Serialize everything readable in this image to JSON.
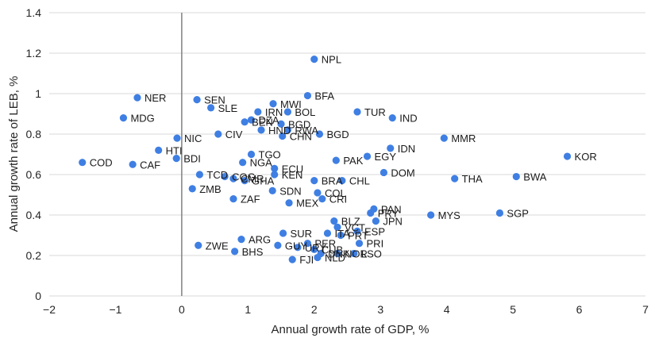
{
  "chart_data": {
    "type": "scatter",
    "title": "",
    "xlabel": "Annual growth rate of GDP, %",
    "ylabel": "Annual growth rate of LEB, %",
    "xlim": [
      -2,
      7
    ],
    "ylim": [
      0,
      1.4
    ],
    "xticks": [
      -2,
      -1,
      0,
      1,
      2,
      3,
      4,
      5,
      6,
      7
    ],
    "yticks": [
      0,
      0.2,
      0.4,
      0.6,
      0.8,
      1,
      1.2,
      1.4
    ],
    "xtick_labels": [
      "−2",
      "−1",
      "0",
      "1",
      "2",
      "3",
      "4",
      "5",
      "6",
      "7"
    ],
    "ytick_labels": [
      "0",
      "0.2",
      "0.4",
      "0.6",
      "0.8",
      "1",
      "1.2",
      "1.4"
    ],
    "grid": "horizontal",
    "zero_line_x": 0,
    "marker_color": "#3f7fe3",
    "zero_line_color": "#808080",
    "points": [
      {
        "label": "NPL",
        "x": 2.0,
        "y": 1.17
      },
      {
        "label": "NER",
        "x": -0.67,
        "y": 0.98
      },
      {
        "label": "SEN",
        "x": 0.23,
        "y": 0.97
      },
      {
        "label": "SLE",
        "x": 0.44,
        "y": 0.93
      },
      {
        "label": "MDG",
        "x": -0.88,
        "y": 0.88
      },
      {
        "label": "BFA",
        "x": 1.9,
        "y": 0.99
      },
      {
        "label": "MWI",
        "x": 1.38,
        "y": 0.95
      },
      {
        "label": "IRN",
        "x": 1.15,
        "y": 0.91
      },
      {
        "label": "BOL",
        "x": 1.6,
        "y": 0.91
      },
      {
        "label": "DZA",
        "x": 1.05,
        "y": 0.87
      },
      {
        "label": "BEN",
        "x": 0.95,
        "y": 0.86
      },
      {
        "label": "BGD",
        "x": 1.5,
        "y": 0.85
      },
      {
        "label": "HND",
        "x": 1.2,
        "y": 0.82
      },
      {
        "label": "RWA",
        "x": 1.6,
        "y": 0.82
      },
      {
        "label": "TUR",
        "x": 2.65,
        "y": 0.91
      },
      {
        "label": "IND",
        "x": 3.18,
        "y": 0.88
      },
      {
        "label": "BGD",
        "x": 2.08,
        "y": 0.8
      },
      {
        "label": "CHN",
        "x": 1.52,
        "y": 0.79
      },
      {
        "label": "CIV",
        "x": 0.55,
        "y": 0.8
      },
      {
        "label": "NIC",
        "x": -0.07,
        "y": 0.78
      },
      {
        "label": "HTI",
        "x": -0.35,
        "y": 0.72
      },
      {
        "label": "MMR",
        "x": 3.96,
        "y": 0.78
      },
      {
        "label": "IDN",
        "x": 3.15,
        "y": 0.73
      },
      {
        "label": "EGY",
        "x": 2.8,
        "y": 0.69
      },
      {
        "label": "PAK",
        "x": 2.33,
        "y": 0.67
      },
      {
        "label": "TGO",
        "x": 1.05,
        "y": 0.7
      },
      {
        "label": "BDI",
        "x": -0.08,
        "y": 0.68
      },
      {
        "label": "COD",
        "x": -1.5,
        "y": 0.66
      },
      {
        "label": "CAF",
        "x": -0.74,
        "y": 0.65
      },
      {
        "label": "NGA",
        "x": 0.92,
        "y": 0.66
      },
      {
        "label": "ECU",
        "x": 1.4,
        "y": 0.63
      },
      {
        "label": "KEN",
        "x": 1.4,
        "y": 0.6
      },
      {
        "label": "KOR",
        "x": 5.82,
        "y": 0.69
      },
      {
        "label": "BWA",
        "x": 5.05,
        "y": 0.59
      },
      {
        "label": "DOM",
        "x": 3.05,
        "y": 0.61
      },
      {
        "label": "THA",
        "x": 4.12,
        "y": 0.58
      },
      {
        "label": "BRA",
        "x": 2.0,
        "y": 0.57
      },
      {
        "label": "CHL",
        "x": 2.42,
        "y": 0.57
      },
      {
        "label": "TCD",
        "x": 0.27,
        "y": 0.6
      },
      {
        "label": "COG",
        "x": 0.65,
        "y": 0.59
      },
      {
        "label": "CMR",
        "x": 0.78,
        "y": 0.58
      },
      {
        "label": "GHA",
        "x": 0.95,
        "y": 0.57
      },
      {
        "label": "ZMB",
        "x": 0.16,
        "y": 0.53
      },
      {
        "label": "SDN",
        "x": 1.37,
        "y": 0.52
      },
      {
        "label": "COL",
        "x": 2.05,
        "y": 0.51
      },
      {
        "label": "ZAF",
        "x": 0.78,
        "y": 0.48
      },
      {
        "label": "CRI",
        "x": 2.12,
        "y": 0.48
      },
      {
        "label": "MEX",
        "x": 1.62,
        "y": 0.46
      },
      {
        "label": "PAN",
        "x": 2.9,
        "y": 0.43
      },
      {
        "label": "PRY",
        "x": 2.85,
        "y": 0.41
      },
      {
        "label": "JPN",
        "x": 2.93,
        "y": 0.37
      },
      {
        "label": "MYS",
        "x": 3.76,
        "y": 0.4
      },
      {
        "label": "SGP",
        "x": 4.8,
        "y": 0.41
      },
      {
        "label": "BLZ",
        "x": 2.3,
        "y": 0.37
      },
      {
        "label": "VCT",
        "x": 2.35,
        "y": 0.34
      },
      {
        "label": "ESP",
        "x": 2.65,
        "y": 0.32
      },
      {
        "label": "SUR",
        "x": 1.53,
        "y": 0.31
      },
      {
        "label": "ITA",
        "x": 2.2,
        "y": 0.31
      },
      {
        "label": "PRT",
        "x": 2.4,
        "y": 0.3
      },
      {
        "label": "ARG",
        "x": 0.9,
        "y": 0.28
      },
      {
        "label": "PER",
        "x": 1.9,
        "y": 0.26
      },
      {
        "label": "PRI",
        "x": 2.68,
        "y": 0.26
      },
      {
        "label": "GUY",
        "x": 1.45,
        "y": 0.25
      },
      {
        "label": "URY",
        "x": 1.75,
        "y": 0.24
      },
      {
        "label": "ZWE",
        "x": 0.25,
        "y": 0.25
      },
      {
        "label": "BHS",
        "x": 0.8,
        "y": 0.22
      },
      {
        "label": "CUB",
        "x": 2.0,
        "y": 0.23
      },
      {
        "label": "DNK",
        "x": 2.1,
        "y": 0.21
      },
      {
        "label": "NOR",
        "x": 2.35,
        "y": 0.21
      },
      {
        "label": "LSO",
        "x": 2.6,
        "y": 0.21
      },
      {
        "label": "NLD",
        "x": 2.05,
        "y": 0.19
      },
      {
        "label": "FJI",
        "x": 1.67,
        "y": 0.18
      }
    ]
  }
}
